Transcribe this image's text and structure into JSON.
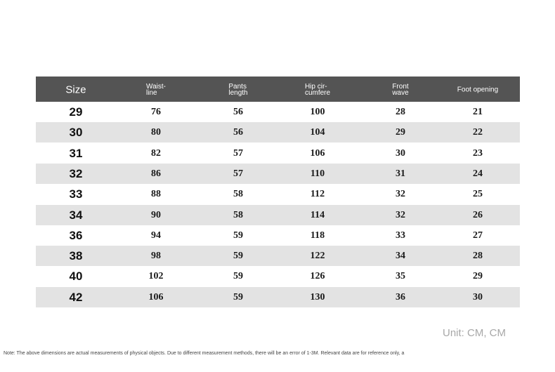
{
  "table": {
    "header": [
      [
        "Size"
      ],
      [
        "Waist-",
        "line"
      ],
      [
        "Pants",
        "length"
      ],
      [
        "Hip cir-",
        "cumfere"
      ],
      [
        "Front",
        "wave"
      ],
      [
        "Foot opening"
      ]
    ],
    "rows": [
      [
        29,
        76,
        56,
        100,
        28,
        21
      ],
      [
        30,
        80,
        56,
        104,
        29,
        22
      ],
      [
        31,
        82,
        57,
        106,
        30,
        23
      ],
      [
        32,
        86,
        57,
        110,
        31,
        24
      ],
      [
        33,
        88,
        58,
        112,
        32,
        25
      ],
      [
        34,
        90,
        58,
        114,
        32,
        26
      ],
      [
        36,
        94,
        59,
        118,
        33,
        27
      ],
      [
        38,
        98,
        59,
        122,
        34,
        28
      ],
      [
        40,
        102,
        59,
        126,
        35,
        29
      ],
      [
        42,
        106,
        59,
        130,
        36,
        30
      ]
    ]
  },
  "footer": {
    "unit": "Unit: CM, CM",
    "note": "Note: The above dimensions are actual measurements of physical objects. Due to different measurement methods, there will be an error of 1-3M. Relevant data are for reference only, a"
  }
}
